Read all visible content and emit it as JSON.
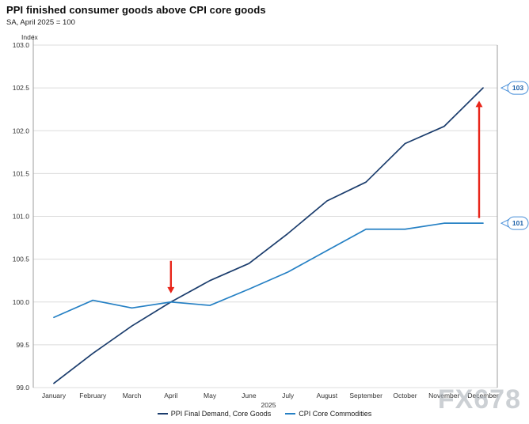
{
  "header": {
    "title": "PPI finished consumer goods above CPI core goods",
    "subtitle": "SA, April 2025 = 100"
  },
  "chart_data": {
    "type": "line",
    "title": "PPI finished consumer goods above CPI core goods",
    "subtitle": "SA, April 2025 = 100",
    "ylabel": "Index",
    "ylim": [
      99.0,
      103.0
    ],
    "ytick_step": 0.5,
    "grid": true,
    "legend_position": "bottom",
    "x": [
      "January",
      "February",
      "March",
      "April",
      "May",
      "June",
      "July",
      "August",
      "September",
      "October",
      "November",
      "December"
    ],
    "x_year_label": "2025",
    "series": [
      {
        "name": "PPI Final Demand, Core Goods",
        "color": "#1b3d6d",
        "values": [
          99.05,
          99.4,
          99.72,
          100.0,
          100.25,
          100.45,
          100.8,
          101.18,
          101.4,
          101.85,
          102.05,
          102.5
        ]
      },
      {
        "name": "CPI Core Commodities",
        "color": "#2580c4",
        "values": [
          99.82,
          100.02,
          99.93,
          100.0,
          99.96,
          100.15,
          100.35,
          100.6,
          100.85,
          100.85,
          100.92,
          100.92
        ]
      }
    ],
    "end_labels": [
      {
        "text": "103",
        "value": 102.5,
        "border_color": "#4a90d9",
        "text_color": "#1b5fa8"
      },
      {
        "text": "101",
        "value": 100.92,
        "border_color": "#4a90d9",
        "text_color": "#1b5fa8"
      }
    ],
    "annotations": [
      {
        "type": "arrow-down",
        "month_index": 3,
        "from_value": 100.48,
        "to_value": 100.1,
        "color": "#e8251a",
        "x_offset": 0
      },
      {
        "type": "arrow-up",
        "month_index": 11,
        "from_value": 100.98,
        "to_value": 102.35,
        "color": "#e8251a",
        "x_offset": -5
      }
    ],
    "watermark": "FX678",
    "colors": {
      "grid": "#dcdcdc",
      "axis": "#9e9e9e",
      "tick_text": "#333333",
      "watermark": "#aab0b8"
    }
  }
}
